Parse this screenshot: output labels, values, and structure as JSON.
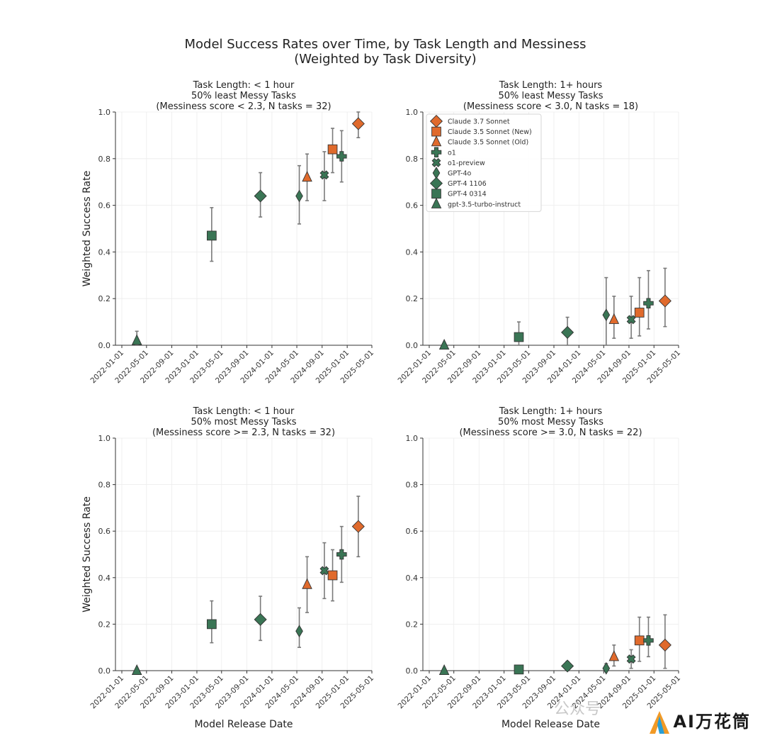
{
  "figure": {
    "title_line1": "Model Success Rates over Time, by Task Length and Messiness",
    "title_line2": "(Weighted by Task Diversity)",
    "xlabel": "Model Release Date",
    "ylabel": "Weighted Success Rate",
    "x_tick_labels": [
      "2022-01-01",
      "2022-05-01",
      "2022-09-01",
      "2023-01-01",
      "2023-05-01",
      "2023-09-01",
      "2024-01-01",
      "2024-05-01",
      "2024-09-01",
      "2025-01-01",
      "2025-05-01"
    ],
    "y_tick_labels": [
      "0.0",
      "0.2",
      "0.4",
      "0.6",
      "0.8",
      "1.0"
    ]
  },
  "watermark": {
    "brand": "AI万花筒",
    "faint": "公众号"
  },
  "colors": {
    "orange": "#e06a2c",
    "green": "#3a7555",
    "edge": "#333333",
    "errorbar": "#7a7a7a",
    "grid": "#ececec"
  },
  "legend": [
    {
      "label": "Claude 3.7 Sonnet",
      "marker": "diamond",
      "color": "orange"
    },
    {
      "label": "Claude 3.5 Sonnet (New)",
      "marker": "square",
      "color": "orange"
    },
    {
      "label": "Claude 3.5 Sonnet (Old)",
      "marker": "triangle",
      "color": "orange"
    },
    {
      "label": "o1",
      "marker": "plus",
      "color": "green"
    },
    {
      "label": "o1-preview",
      "marker": "x",
      "color": "green"
    },
    {
      "label": "GPT-4o",
      "marker": "thin-diamond",
      "color": "green"
    },
    {
      "label": "GPT-4 1106",
      "marker": "diamond",
      "color": "green"
    },
    {
      "label": "GPT-4 0314",
      "marker": "square",
      "color": "green"
    },
    {
      "label": "gpt-3.5-turbo-instruct",
      "marker": "triangle",
      "color": "green"
    }
  ],
  "chart_data": [
    {
      "type": "scatter",
      "title": [
        "Task Length: < 1 hour",
        "50% least Messy Tasks",
        "(Messiness score < 2.3, N tasks = 32)"
      ],
      "ylim": [
        0,
        1
      ],
      "xlim": [
        "2021-12-01",
        "2025-05-01"
      ],
      "legend": false,
      "points": [
        {
          "model": "gpt-3.5-turbo-instruct",
          "date": "2022-03-15",
          "y": 0.02,
          "ci": [
            0.0,
            0.06
          ]
        },
        {
          "model": "GPT-4 0314",
          "date": "2023-03-14",
          "y": 0.47,
          "ci": [
            0.36,
            0.59
          ]
        },
        {
          "model": "GPT-4 1106",
          "date": "2023-11-06",
          "y": 0.64,
          "ci": [
            0.55,
            0.74
          ]
        },
        {
          "model": "GPT-4o",
          "date": "2024-05-13",
          "y": 0.64,
          "ci": [
            0.52,
            0.77
          ]
        },
        {
          "model": "Claude 3.5 Sonnet (Old)",
          "date": "2024-06-20",
          "y": 0.72,
          "ci": [
            0.62,
            0.82
          ]
        },
        {
          "model": "o1-preview",
          "date": "2024-09-12",
          "y": 0.73,
          "ci": [
            0.62,
            0.83
          ]
        },
        {
          "model": "Claude 3.5 Sonnet (New)",
          "date": "2024-10-22",
          "y": 0.84,
          "ci": [
            0.74,
            0.93
          ]
        },
        {
          "model": "o1",
          "date": "2024-12-05",
          "y": 0.81,
          "ci": [
            0.7,
            0.92
          ]
        },
        {
          "model": "Claude 3.7 Sonnet",
          "date": "2025-02-24",
          "y": 0.95,
          "ci": [
            0.89,
            1.0
          ]
        }
      ]
    },
    {
      "type": "scatter",
      "title": [
        "Task Length: 1+ hours",
        "50% least Messy Tasks",
        "(Messiness score < 3.0, N tasks = 18)"
      ],
      "ylim": [
        0,
        1
      ],
      "xlim": [
        "2021-12-01",
        "2025-05-01"
      ],
      "legend": "top-left",
      "points": [
        {
          "model": "gpt-3.5-turbo-instruct",
          "date": "2022-03-15",
          "y": 0.0,
          "ci": [
            0.0,
            0.0
          ]
        },
        {
          "model": "GPT-4 0314",
          "date": "2023-03-14",
          "y": 0.035,
          "ci": [
            0.0,
            0.1
          ]
        },
        {
          "model": "GPT-4 1106",
          "date": "2023-11-06",
          "y": 0.055,
          "ci": [
            0.0,
            0.12
          ]
        },
        {
          "model": "GPT-4o",
          "date": "2024-05-13",
          "y": 0.13,
          "ci": [
            0.0,
            0.29
          ]
        },
        {
          "model": "Claude 3.5 Sonnet (Old)",
          "date": "2024-06-20",
          "y": 0.11,
          "ci": [
            0.03,
            0.21
          ]
        },
        {
          "model": "o1-preview",
          "date": "2024-09-12",
          "y": 0.11,
          "ci": [
            0.03,
            0.21
          ]
        },
        {
          "model": "Claude 3.5 Sonnet (New)",
          "date": "2024-10-22",
          "y": 0.14,
          "ci": [
            0.04,
            0.29
          ]
        },
        {
          "model": "o1",
          "date": "2024-12-05",
          "y": 0.18,
          "ci": [
            0.07,
            0.32
          ]
        },
        {
          "model": "Claude 3.7 Sonnet",
          "date": "2025-02-24",
          "y": 0.19,
          "ci": [
            0.08,
            0.33
          ]
        }
      ]
    },
    {
      "type": "scatter",
      "title": [
        "Task Length: < 1 hour",
        "50% most Messy Tasks",
        "(Messiness score >= 2.3, N tasks = 32)"
      ],
      "ylim": [
        0,
        1
      ],
      "xlim": [
        "2021-12-01",
        "2025-05-01"
      ],
      "legend": false,
      "points": [
        {
          "model": "gpt-3.5-turbo-instruct",
          "date": "2022-03-15",
          "y": 0.0,
          "ci": [
            0.0,
            0.0
          ]
        },
        {
          "model": "GPT-4 0314",
          "date": "2023-03-14",
          "y": 0.2,
          "ci": [
            0.12,
            0.3
          ]
        },
        {
          "model": "GPT-4 1106",
          "date": "2023-11-06",
          "y": 0.22,
          "ci": [
            0.13,
            0.32
          ]
        },
        {
          "model": "GPT-4o",
          "date": "2024-05-13",
          "y": 0.17,
          "ci": [
            0.1,
            0.27
          ]
        },
        {
          "model": "Claude 3.5 Sonnet (Old)",
          "date": "2024-06-20",
          "y": 0.37,
          "ci": [
            0.25,
            0.49
          ]
        },
        {
          "model": "o1-preview",
          "date": "2024-09-12",
          "y": 0.43,
          "ci": [
            0.31,
            0.55
          ]
        },
        {
          "model": "Claude 3.5 Sonnet (New)",
          "date": "2024-10-22",
          "y": 0.41,
          "ci": [
            0.3,
            0.52
          ]
        },
        {
          "model": "o1",
          "date": "2024-12-05",
          "y": 0.5,
          "ci": [
            0.38,
            0.62
          ]
        },
        {
          "model": "Claude 3.7 Sonnet",
          "date": "2025-02-24",
          "y": 0.62,
          "ci": [
            0.49,
            0.75
          ]
        }
      ]
    },
    {
      "type": "scatter",
      "title": [
        "Task Length: 1+ hours",
        "50% most Messy Tasks",
        "(Messiness score >= 3.0, N tasks = 22)"
      ],
      "ylim": [
        0,
        1
      ],
      "xlim": [
        "2021-12-01",
        "2025-05-01"
      ],
      "legend": false,
      "points": [
        {
          "model": "gpt-3.5-turbo-instruct",
          "date": "2022-03-15",
          "y": 0.0,
          "ci": [
            0.0,
            0.0
          ]
        },
        {
          "model": "GPT-4 0314",
          "date": "2023-03-14",
          "y": 0.005,
          "ci": [
            0.0,
            0.01
          ]
        },
        {
          "model": "GPT-4 1106",
          "date": "2023-11-06",
          "y": 0.02,
          "ci": [
            0.0,
            0.04
          ]
        },
        {
          "model": "GPT-4o",
          "date": "2024-05-13",
          "y": 0.01,
          "ci": [
            0.0,
            0.03
          ]
        },
        {
          "model": "Claude 3.5 Sonnet (Old)",
          "date": "2024-06-20",
          "y": 0.06,
          "ci": [
            0.02,
            0.11
          ]
        },
        {
          "model": "o1-preview",
          "date": "2024-09-12",
          "y": 0.05,
          "ci": [
            0.01,
            0.09
          ]
        },
        {
          "model": "Claude 3.5 Sonnet (New)",
          "date": "2024-10-22",
          "y": 0.13,
          "ci": [
            0.04,
            0.23
          ]
        },
        {
          "model": "o1",
          "date": "2024-12-05",
          "y": 0.13,
          "ci": [
            0.06,
            0.23
          ]
        },
        {
          "model": "Claude 3.7 Sonnet",
          "date": "2025-02-24",
          "y": 0.11,
          "ci": [
            0.01,
            0.24
          ]
        }
      ]
    }
  ]
}
